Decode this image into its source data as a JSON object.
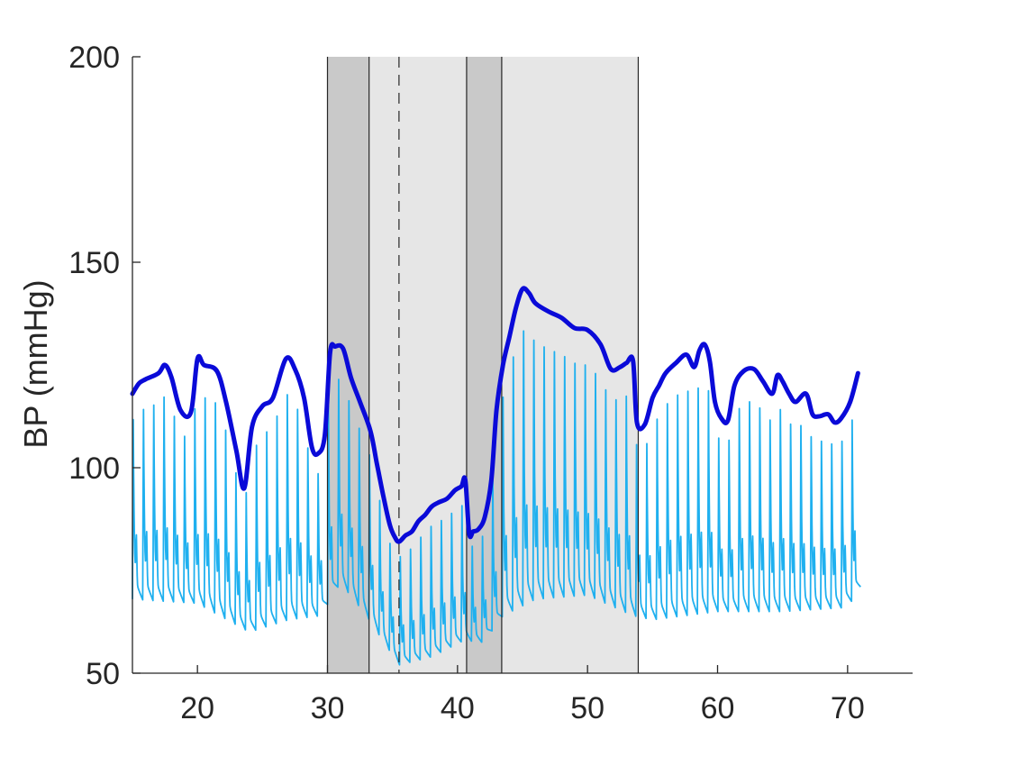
{
  "chart_data": {
    "type": "line",
    "title": "",
    "xlabel": "",
    "ylabel": "BP (mmHg)",
    "xlim": [
      15,
      75
    ],
    "ylim": [
      50,
      200
    ],
    "x_ticks": [
      20,
      30,
      40,
      50,
      60,
      70
    ],
    "y_ticks": [
      50,
      100,
      150,
      200
    ],
    "grid": false,
    "box": false,
    "colors": {
      "waveform": "#1fb0ef",
      "envelope": "#0a0ad8",
      "band_dark": "#c9c9c9",
      "band_light": "#e6e6e6",
      "divider": "#262626",
      "axis": "#262626"
    },
    "shaded_regions": [
      {
        "x0": 30.0,
        "x1": 33.2,
        "shade": "dark"
      },
      {
        "x0": 33.2,
        "x1": 40.7,
        "shade": "light"
      },
      {
        "x0": 40.7,
        "x1": 43.4,
        "shade": "dark"
      },
      {
        "x0": 43.4,
        "x1": 53.9,
        "shade": "light"
      }
    ],
    "vertical_lines": [
      {
        "x": 30.0,
        "style": "solid"
      },
      {
        "x": 33.2,
        "style": "solid"
      },
      {
        "x": 35.5,
        "style": "dashed"
      },
      {
        "x": 40.7,
        "style": "solid"
      },
      {
        "x": 43.4,
        "style": "solid"
      },
      {
        "x": 53.9,
        "style": "solid"
      }
    ],
    "series": [
      {
        "role": "systolic-envelope",
        "x": [
          15.0,
          15.5,
          16.0,
          17.0,
          17.5,
          18.0,
          18.7,
          19.5,
          20.0,
          20.5,
          21.5,
          22.2,
          23.0,
          23.6,
          24.2,
          25.0,
          25.8,
          26.8,
          27.5,
          28.2,
          28.8,
          29.3,
          29.8,
          30.2,
          30.6,
          31.2,
          31.8,
          32.5,
          33.3,
          33.8,
          34.3,
          34.8,
          35.2,
          35.5,
          36.0,
          36.5,
          37.0,
          37.5,
          38.0,
          38.5,
          39.2,
          39.8,
          40.3,
          40.6,
          40.9,
          41.2,
          41.6,
          42.1,
          42.6,
          43.0,
          43.5,
          44.0,
          44.5,
          45.0,
          45.5,
          46.0,
          47.0,
          48.0,
          49.0,
          50.0,
          51.0,
          51.8,
          52.5,
          53.0,
          53.5,
          53.8,
          54.4,
          55.0,
          55.5,
          56.0,
          56.8,
          57.6,
          58.2,
          58.6,
          59.0,
          59.4,
          59.8,
          60.3,
          60.8,
          61.3,
          62.0,
          62.8,
          63.5,
          64.2,
          64.6,
          65.0,
          65.5,
          66.0,
          66.8,
          67.3,
          67.8,
          68.5,
          69.0,
          69.5,
          70.2,
          70.8
        ],
        "y": [
          118.0,
          120.5,
          121.5,
          123.0,
          125.0,
          122.0,
          114.0,
          113.5,
          126.5,
          125.0,
          123.5,
          116.0,
          104.0,
          95.0,
          110.0,
          115.0,
          117.0,
          126.5,
          124.0,
          117.0,
          105.0,
          103.5,
          108.0,
          128.0,
          129.5,
          129.0,
          122.0,
          116.0,
          109.0,
          101.0,
          93.0,
          86.0,
          83.0,
          82.0,
          83.5,
          84.5,
          87.0,
          88.5,
          90.5,
          91.5,
          92.5,
          94.5,
          95.5,
          97.0,
          84.0,
          84.5,
          85.0,
          88.0,
          97.0,
          114.0,
          125.0,
          132.0,
          139.0,
          143.5,
          142.5,
          140.0,
          138.0,
          136.5,
          134.0,
          133.5,
          130.0,
          124.0,
          124.5,
          125.5,
          126.0,
          111.0,
          110.5,
          117.0,
          120.0,
          123.0,
          125.5,
          127.5,
          124.5,
          128.5,
          130.0,
          126.0,
          116.0,
          112.0,
          111.5,
          120.0,
          123.5,
          124.0,
          121.0,
          118.0,
          122.5,
          121.0,
          118.0,
          116.0,
          118.0,
          113.0,
          112.5,
          113.0,
          111.0,
          112.0,
          116.0,
          123.0
        ]
      },
      {
        "role": "bp-waveform",
        "beat_interval_s": 0.79,
        "x_start": 15.0,
        "x_end": 71.0,
        "diastolic_x": [
          15.0,
          20.0,
          24.0,
          27.0,
          29.5,
          31.0,
          33.0,
          35.5,
          38.0,
          40.5,
          42.0,
          43.5,
          46.0,
          50.0,
          53.5,
          55.0,
          60.0,
          65.0,
          70.0,
          71.0
        ],
        "diastolic_y": [
          68.0,
          67.0,
          60.0,
          63.0,
          64.0,
          72.0,
          64.0,
          52.0,
          54.0,
          58.0,
          57.5,
          64.0,
          68.0,
          69.0,
          64.0,
          63.0,
          65.0,
          65.0,
          66.0,
          71.0
        ]
      }
    ]
  }
}
